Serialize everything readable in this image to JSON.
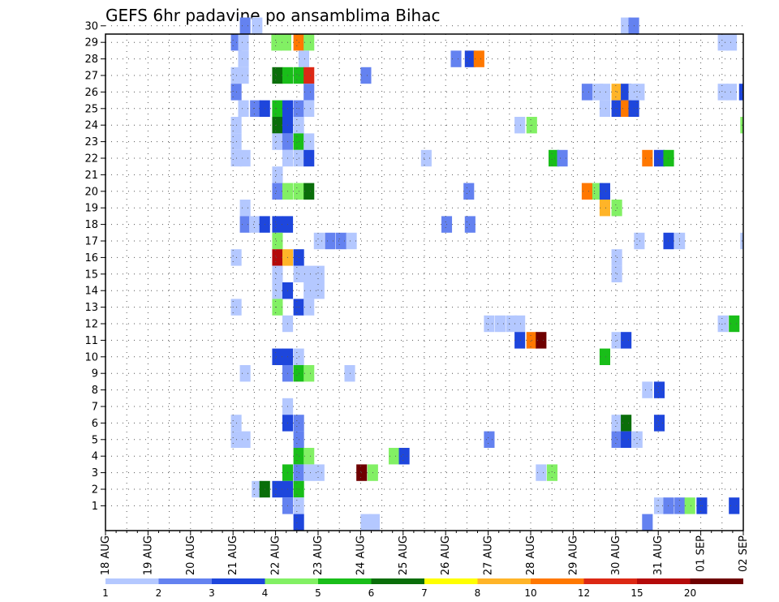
{
  "chart_data": {
    "type": "heatmap",
    "title": "GEFS 6hr padavine po ansamblima Bihac",
    "y_tick_labels": [
      "1",
      "2",
      "3",
      "4",
      "5",
      "6",
      "7",
      "8",
      "9",
      "10",
      "11",
      "12",
      "13",
      "14",
      "15",
      "16",
      "17",
      "18",
      "19",
      "20",
      "21",
      "22",
      "23",
      "24",
      "25",
      "26",
      "27",
      "28",
      "29",
      "30"
    ],
    "x_tick_labels": [
      "18 AUG",
      "19 AUG",
      "20 AUG",
      "21 AUG",
      "22 AUG",
      "23 AUG",
      "24 AUG",
      "25 AUG",
      "26 AUG",
      "27 AUG",
      "28 AUG",
      "29 AUG",
      "30 AUG",
      "31 AUG",
      "01 SEP",
      "02 SEP"
    ],
    "x_range_days": [
      18,
      33
    ],
    "time_step_hours": 6,
    "grid": "dotted",
    "legend": {
      "placement": "bottom",
      "labels": [
        "1",
        "2",
        "3",
        "4",
        "5",
        "6",
        "7",
        "8",
        "10",
        "12",
        "15",
        "20"
      ],
      "colors": [
        "#b4c8ff",
        "#6482f0",
        "#1e46dc",
        "#82f064",
        "#19be19",
        "#0a6e0a",
        "#ffff00",
        "#ffb428",
        "#ff7800",
        "#dc2814",
        "#b40a0a",
        "#6e0000"
      ]
    },
    "cells": [
      {
        "m": 30,
        "t": [
          [
            21.16,
            2
          ],
          [
            21.44,
            1
          ],
          [
            30.12,
            1
          ],
          [
            30.3,
            2
          ]
        ]
      },
      {
        "m": 29,
        "t": [
          [
            20.95,
            2
          ],
          [
            21.12,
            1
          ],
          [
            21.9,
            4
          ],
          [
            22.12,
            4
          ],
          [
            22.42,
            9
          ],
          [
            22.66,
            4
          ],
          [
            32.4,
            1
          ],
          [
            32.6,
            1
          ]
        ]
      },
      {
        "m": 28,
        "t": [
          [
            21.12,
            1
          ],
          [
            22.54,
            1
          ],
          [
            26.12,
            2
          ],
          [
            26.45,
            3
          ],
          [
            26.66,
            9
          ]
        ]
      },
      {
        "m": 27,
        "t": [
          [
            20.95,
            1
          ],
          [
            21.12,
            1
          ],
          [
            21.92,
            6
          ],
          [
            22.16,
            5
          ],
          [
            22.42,
            5
          ],
          [
            22.66,
            10
          ],
          [
            24.0,
            2
          ]
        ]
      },
      {
        "m": 26,
        "t": [
          [
            20.95,
            2
          ],
          [
            22.66,
            2
          ],
          [
            29.2,
            2
          ],
          [
            29.45,
            1
          ],
          [
            29.62,
            1
          ],
          [
            29.9,
            8
          ],
          [
            30.12,
            3
          ],
          [
            30.3,
            1
          ],
          [
            30.43,
            1
          ],
          [
            32.4,
            1
          ],
          [
            32.6,
            1
          ],
          [
            32.9,
            3
          ]
        ]
      },
      {
        "m": 25,
        "t": [
          [
            21.12,
            1
          ],
          [
            21.4,
            2
          ],
          [
            21.62,
            3
          ],
          [
            21.92,
            5
          ],
          [
            22.16,
            3
          ],
          [
            22.42,
            2
          ],
          [
            22.66,
            1
          ],
          [
            29.62,
            1
          ],
          [
            29.9,
            3
          ],
          [
            30.12,
            9
          ],
          [
            30.3,
            3
          ]
        ]
      },
      {
        "m": 24,
        "t": [
          [
            20.95,
            1
          ],
          [
            21.92,
            6
          ],
          [
            22.16,
            3
          ],
          [
            22.42,
            1
          ],
          [
            27.62,
            1
          ],
          [
            27.9,
            4
          ],
          [
            32.93,
            4
          ]
        ]
      },
      {
        "m": 23,
        "t": [
          [
            20.95,
            1
          ],
          [
            21.92,
            1
          ],
          [
            22.16,
            2
          ],
          [
            22.42,
            5
          ],
          [
            22.66,
            1
          ]
        ]
      },
      {
        "m": 22,
        "t": [
          [
            20.95,
            1
          ],
          [
            21.16,
            1
          ],
          [
            22.16,
            1
          ],
          [
            22.42,
            1
          ],
          [
            22.66,
            3
          ],
          [
            25.42,
            1
          ],
          [
            28.42,
            5
          ],
          [
            28.62,
            2
          ],
          [
            30.62,
            9
          ],
          [
            30.9,
            3
          ],
          [
            31.12,
            5
          ]
        ]
      },
      {
        "m": 21,
        "t": [
          [
            21.92,
            1
          ]
        ]
      },
      {
        "m": 20,
        "t": [
          [
            21.92,
            2
          ],
          [
            22.16,
            4
          ],
          [
            22.42,
            4
          ],
          [
            22.66,
            6
          ],
          [
            26.42,
            2
          ],
          [
            29.2,
            9
          ],
          [
            29.45,
            4
          ],
          [
            29.62,
            3
          ]
        ]
      },
      {
        "m": 19,
        "t": [
          [
            21.16,
            1
          ],
          [
            29.62,
            8
          ],
          [
            29.9,
            4
          ]
        ]
      },
      {
        "m": 18,
        "t": [
          [
            21.16,
            2
          ],
          [
            21.38,
            1
          ],
          [
            21.62,
            3
          ],
          [
            21.92,
            3
          ],
          [
            22.16,
            3
          ],
          [
            25.9,
            2
          ],
          [
            26.45,
            2
          ]
        ]
      },
      {
        "m": 17,
        "t": [
          [
            21.92,
            4
          ],
          [
            22.9,
            1
          ],
          [
            23.16,
            2
          ],
          [
            23.42,
            2
          ],
          [
            23.66,
            1
          ],
          [
            30.43,
            1
          ],
          [
            31.12,
            3
          ],
          [
            31.38,
            1
          ],
          [
            32.93,
            1
          ]
        ]
      },
      {
        "m": 16,
        "t": [
          [
            20.95,
            1
          ],
          [
            21.92,
            11
          ],
          [
            22.16,
            8
          ],
          [
            22.42,
            3
          ],
          [
            29.9,
            1
          ]
        ]
      },
      {
        "m": 15,
        "t": [
          [
            21.92,
            1
          ],
          [
            22.42,
            1
          ],
          [
            22.66,
            1
          ],
          [
            22.9,
            1
          ],
          [
            29.9,
            1
          ]
        ]
      },
      {
        "m": 14,
        "t": [
          [
            21.92,
            1
          ],
          [
            22.16,
            3
          ],
          [
            22.66,
            1
          ],
          [
            22.9,
            1
          ]
        ]
      },
      {
        "m": 13,
        "t": [
          [
            20.95,
            1
          ],
          [
            21.92,
            4
          ],
          [
            22.42,
            3
          ],
          [
            22.66,
            1
          ]
        ]
      },
      {
        "m": 12,
        "t": [
          [
            22.16,
            1
          ],
          [
            26.9,
            1
          ],
          [
            27.16,
            1
          ],
          [
            27.42,
            1
          ],
          [
            27.62,
            1
          ],
          [
            32.4,
            1
          ],
          [
            32.66,
            5
          ]
        ]
      },
      {
        "m": 11,
        "t": [
          [
            27.62,
            3
          ],
          [
            27.9,
            9
          ],
          [
            28.12,
            12
          ],
          [
            29.9,
            1
          ],
          [
            30.12,
            3
          ]
        ]
      },
      {
        "m": 10,
        "t": [
          [
            21.92,
            3
          ],
          [
            22.16,
            3
          ],
          [
            22.42,
            1
          ],
          [
            29.62,
            5
          ]
        ]
      },
      {
        "m": 9,
        "t": [
          [
            21.16,
            1
          ],
          [
            22.16,
            2
          ],
          [
            22.42,
            5
          ],
          [
            22.66,
            4
          ],
          [
            23.62,
            1
          ]
        ]
      },
      {
        "m": 8,
        "t": [
          [
            30.62,
            1
          ],
          [
            30.9,
            3
          ]
        ]
      },
      {
        "m": 7,
        "t": [
          [
            22.16,
            1
          ]
        ]
      },
      {
        "m": 6,
        "t": [
          [
            20.95,
            1
          ],
          [
            22.16,
            3
          ],
          [
            22.42,
            2
          ],
          [
            29.9,
            1
          ],
          [
            30.12,
            6
          ],
          [
            30.9,
            3
          ]
        ]
      },
      {
        "m": 5,
        "t": [
          [
            20.95,
            1
          ],
          [
            21.16,
            1
          ],
          [
            22.42,
            2
          ],
          [
            26.9,
            2
          ],
          [
            29.9,
            2
          ],
          [
            30.12,
            3
          ],
          [
            30.38,
            1
          ]
        ]
      },
      {
        "m": 4,
        "t": [
          [
            22.42,
            5
          ],
          [
            22.66,
            4
          ],
          [
            24.66,
            4
          ],
          [
            24.9,
            3
          ]
        ]
      },
      {
        "m": 3,
        "t": [
          [
            22.16,
            5
          ],
          [
            22.42,
            2
          ],
          [
            22.66,
            1
          ],
          [
            22.9,
            1
          ],
          [
            23.9,
            12
          ],
          [
            24.16,
            4
          ],
          [
            28.12,
            1
          ],
          [
            28.38,
            4
          ]
        ]
      },
      {
        "m": 2,
        "t": [
          [
            21.44,
            1
          ],
          [
            21.62,
            6
          ],
          [
            21.92,
            3
          ],
          [
            22.16,
            3
          ],
          [
            22.42,
            5
          ]
        ]
      },
      {
        "m": 1,
        "t": [
          [
            22.16,
            2
          ],
          [
            22.42,
            1
          ],
          [
            30.9,
            1
          ],
          [
            31.12,
            2
          ],
          [
            31.38,
            2
          ],
          [
            31.62,
            4
          ],
          [
            31.9,
            3
          ],
          [
            32.66,
            3
          ]
        ]
      },
      {
        "m": 0,
        "t": [
          [
            22.42,
            3
          ],
          [
            24.0,
            1
          ],
          [
            24.2,
            1
          ],
          [
            30.62,
            2
          ]
        ]
      }
    ]
  }
}
